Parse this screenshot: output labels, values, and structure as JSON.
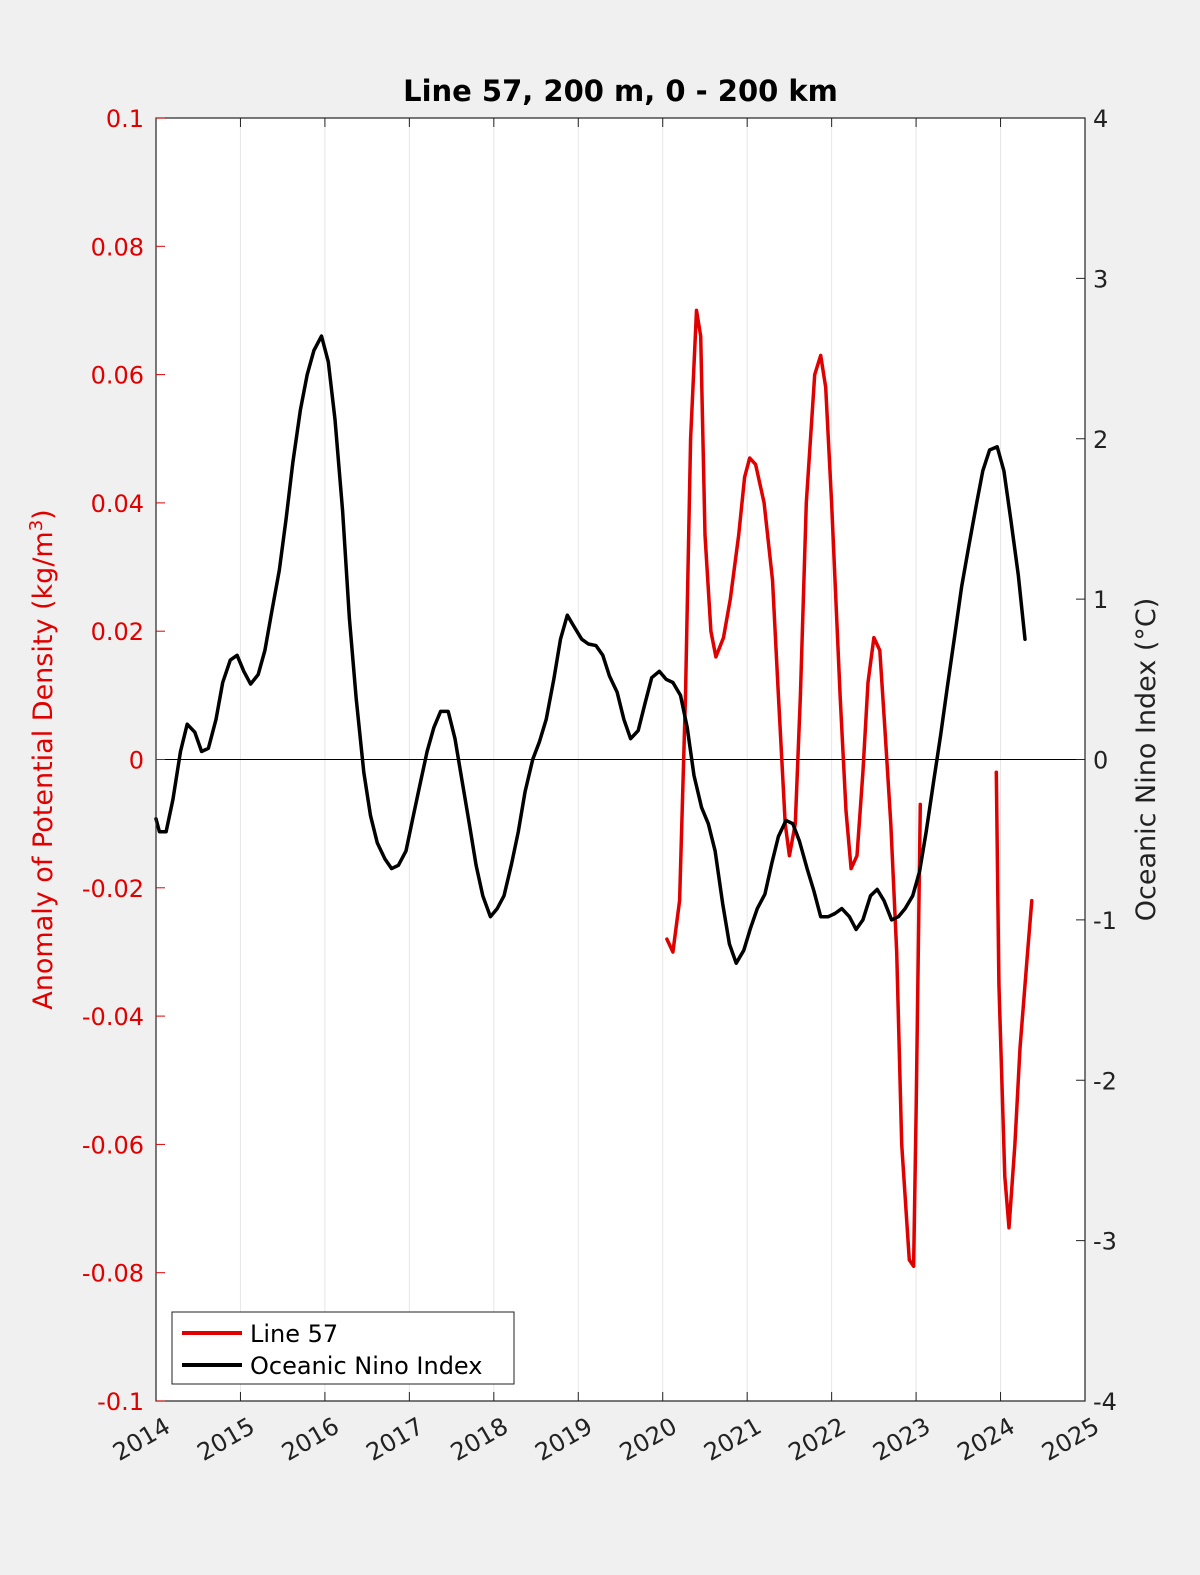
{
  "chart_data": {
    "type": "line",
    "title": "Line 57, 200 m, 0 - 200 km",
    "xlim": [
      2014,
      2025
    ],
    "x_ticks": [
      "2014",
      "2015",
      "2016",
      "2017",
      "2018",
      "2019",
      "2020",
      "2021",
      "2022",
      "2023",
      "2024",
      "2025"
    ],
    "y_left": {
      "label_pre": "Anomaly of Potential Density (kg/m",
      "label_sup": "3",
      "label_post": ")",
      "lim": [
        -0.1,
        0.1
      ],
      "ticks": [
        "0.1",
        "0.08",
        "0.06",
        "0.04",
        "0.02",
        "0",
        "-0.02",
        "-0.04",
        "-0.06",
        "-0.08",
        "-0.1"
      ],
      "color": "#e00000"
    },
    "y_right": {
      "label": "Oceanic Nino Index (°C)",
      "lim": [
        -4,
        4
      ],
      "ticks": [
        "4",
        "3",
        "2",
        "1",
        "0",
        "-1",
        "-2",
        "-3",
        "-4"
      ],
      "color": "#222222"
    },
    "grid": "vertical",
    "zero_line": true,
    "legend_position": "bottom-left",
    "series": [
      {
        "name": "Line 57",
        "axis": "left",
        "color": "#e00000",
        "segments": [
          [
            [
              2020.05,
              -0.028
            ],
            [
              2020.12,
              -0.03
            ],
            [
              2020.2,
              -0.022
            ],
            [
              2020.27,
              0.01
            ],
            [
              2020.33,
              0.05
            ],
            [
              2020.4,
              0.07
            ],
            [
              2020.45,
              0.066
            ],
            [
              2020.5,
              0.035
            ],
            [
              2020.57,
              0.02
            ],
            [
              2020.63,
              0.016
            ],
            [
              2020.72,
              0.019
            ],
            [
              2020.8,
              0.025
            ],
            [
              2020.9,
              0.035
            ],
            [
              2020.97,
              0.044
            ],
            [
              2021.03,
              0.047
            ],
            [
              2021.1,
              0.046
            ],
            [
              2021.2,
              0.04
            ],
            [
              2021.3,
              0.028
            ],
            [
              2021.37,
              0.01
            ],
            [
              2021.45,
              -0.01
            ],
            [
              2021.5,
              -0.015
            ],
            [
              2021.57,
              -0.01
            ],
            [
              2021.63,
              0.01
            ],
            [
              2021.7,
              0.04
            ],
            [
              2021.8,
              0.06
            ],
            [
              2021.87,
              0.063
            ],
            [
              2021.93,
              0.058
            ],
            [
              2022.0,
              0.04
            ],
            [
              2022.1,
              0.01
            ],
            [
              2022.17,
              -0.008
            ],
            [
              2022.23,
              -0.017
            ],
            [
              2022.3,
              -0.015
            ],
            [
              2022.37,
              -0.002
            ],
            [
              2022.43,
              0.012
            ],
            [
              2022.5,
              0.019
            ],
            [
              2022.57,
              0.017
            ],
            [
              2022.63,
              0.005
            ],
            [
              2022.7,
              -0.01
            ],
            [
              2022.77,
              -0.03
            ],
            [
              2022.83,
              -0.06
            ],
            [
              2022.92,
              -0.078
            ],
            [
              2022.97,
              -0.079
            ],
            [
              2023.0,
              -0.055
            ],
            [
              2023.05,
              -0.007
            ]
          ],
          [
            [
              2023.95,
              -0.002
            ],
            [
              2023.98,
              -0.035
            ],
            [
              2024.05,
              -0.065
            ],
            [
              2024.1,
              -0.073
            ],
            [
              2024.17,
              -0.06
            ],
            [
              2024.23,
              -0.045
            ],
            [
              2024.32,
              -0.03
            ],
            [
              2024.37,
              -0.022
            ]
          ]
        ]
      },
      {
        "name": "Oceanic Nino Index",
        "axis": "right",
        "color": "#000000",
        "points": [
          [
            2014.0,
            -0.37
          ],
          [
            2014.04,
            -0.45
          ],
          [
            2014.12,
            -0.45
          ],
          [
            2014.2,
            -0.25
          ],
          [
            2014.29,
            0.05
          ],
          [
            2014.37,
            0.22
          ],
          [
            2014.46,
            0.17
          ],
          [
            2014.54,
            0.05
          ],
          [
            2014.62,
            0.07
          ],
          [
            2014.71,
            0.25
          ],
          [
            2014.79,
            0.48
          ],
          [
            2014.88,
            0.62
          ],
          [
            2014.96,
            0.65
          ],
          [
            2015.04,
            0.55
          ],
          [
            2015.12,
            0.47
          ],
          [
            2015.21,
            0.53
          ],
          [
            2015.29,
            0.68
          ],
          [
            2015.37,
            0.92
          ],
          [
            2015.46,
            1.18
          ],
          [
            2015.54,
            1.5
          ],
          [
            2015.62,
            1.85
          ],
          [
            2015.71,
            2.18
          ],
          [
            2015.79,
            2.4
          ],
          [
            2015.87,
            2.55
          ],
          [
            2015.96,
            2.64
          ],
          [
            2016.04,
            2.48
          ],
          [
            2016.12,
            2.12
          ],
          [
            2016.21,
            1.55
          ],
          [
            2016.29,
            0.88
          ],
          [
            2016.37,
            0.38
          ],
          [
            2016.46,
            -0.08
          ],
          [
            2016.54,
            -0.35
          ],
          [
            2016.62,
            -0.52
          ],
          [
            2016.71,
            -0.62
          ],
          [
            2016.79,
            -0.68
          ],
          [
            2016.87,
            -0.66
          ],
          [
            2016.96,
            -0.57
          ],
          [
            2017.04,
            -0.37
          ],
          [
            2017.12,
            -0.17
          ],
          [
            2017.21,
            0.05
          ],
          [
            2017.29,
            0.2
          ],
          [
            2017.37,
            0.3
          ],
          [
            2017.46,
            0.3
          ],
          [
            2017.54,
            0.13
          ],
          [
            2017.62,
            -0.12
          ],
          [
            2017.71,
            -0.4
          ],
          [
            2017.79,
            -0.66
          ],
          [
            2017.87,
            -0.85
          ],
          [
            2017.96,
            -0.98
          ],
          [
            2018.04,
            -0.93
          ],
          [
            2018.12,
            -0.85
          ],
          [
            2018.21,
            -0.65
          ],
          [
            2018.29,
            -0.45
          ],
          [
            2018.37,
            -0.2
          ],
          [
            2018.46,
            0.0
          ],
          [
            2018.54,
            0.11
          ],
          [
            2018.62,
            0.25
          ],
          [
            2018.71,
            0.5
          ],
          [
            2018.79,
            0.75
          ],
          [
            2018.87,
            0.9
          ],
          [
            2018.96,
            0.82
          ],
          [
            2019.04,
            0.75
          ],
          [
            2019.12,
            0.72
          ],
          [
            2019.21,
            0.71
          ],
          [
            2019.29,
            0.65
          ],
          [
            2019.37,
            0.52
          ],
          [
            2019.46,
            0.42
          ],
          [
            2019.54,
            0.25
          ],
          [
            2019.62,
            0.13
          ],
          [
            2019.71,
            0.18
          ],
          [
            2019.79,
            0.35
          ],
          [
            2019.87,
            0.51
          ],
          [
            2019.96,
            0.55
          ],
          [
            2020.04,
            0.5
          ],
          [
            2020.12,
            0.48
          ],
          [
            2020.21,
            0.4
          ],
          [
            2020.29,
            0.2
          ],
          [
            2020.37,
            -0.1
          ],
          [
            2020.46,
            -0.3
          ],
          [
            2020.54,
            -0.4
          ],
          [
            2020.62,
            -0.57
          ],
          [
            2020.71,
            -0.9
          ],
          [
            2020.79,
            -1.15
          ],
          [
            2020.87,
            -1.27
          ],
          [
            2020.96,
            -1.19
          ],
          [
            2021.04,
            -1.05
          ],
          [
            2021.12,
            -0.93
          ],
          [
            2021.21,
            -0.84
          ],
          [
            2021.29,
            -0.65
          ],
          [
            2021.37,
            -0.48
          ],
          [
            2021.46,
            -0.38
          ],
          [
            2021.54,
            -0.4
          ],
          [
            2021.62,
            -0.51
          ],
          [
            2021.71,
            -0.68
          ],
          [
            2021.79,
            -0.82
          ],
          [
            2021.87,
            -0.98
          ],
          [
            2021.96,
            -0.98
          ],
          [
            2022.04,
            -0.96
          ],
          [
            2022.12,
            -0.93
          ],
          [
            2022.21,
            -0.98
          ],
          [
            2022.29,
            -1.06
          ],
          [
            2022.37,
            -1.0
          ],
          [
            2022.46,
            -0.85
          ],
          [
            2022.54,
            -0.81
          ],
          [
            2022.62,
            -0.88
          ],
          [
            2022.71,
            -1.0
          ],
          [
            2022.79,
            -0.98
          ],
          [
            2022.87,
            -0.93
          ],
          [
            2022.96,
            -0.85
          ],
          [
            2023.04,
            -0.7
          ],
          [
            2023.12,
            -0.45
          ],
          [
            2023.21,
            -0.13
          ],
          [
            2023.29,
            0.15
          ],
          [
            2023.37,
            0.45
          ],
          [
            2023.46,
            0.78
          ],
          [
            2023.54,
            1.08
          ],
          [
            2023.62,
            1.32
          ],
          [
            2023.71,
            1.58
          ],
          [
            2023.79,
            1.8
          ],
          [
            2023.87,
            1.93
          ],
          [
            2023.96,
            1.95
          ],
          [
            2024.04,
            1.8
          ],
          [
            2024.12,
            1.5
          ],
          [
            2024.21,
            1.15
          ],
          [
            2024.29,
            0.75
          ]
        ]
      }
    ]
  }
}
